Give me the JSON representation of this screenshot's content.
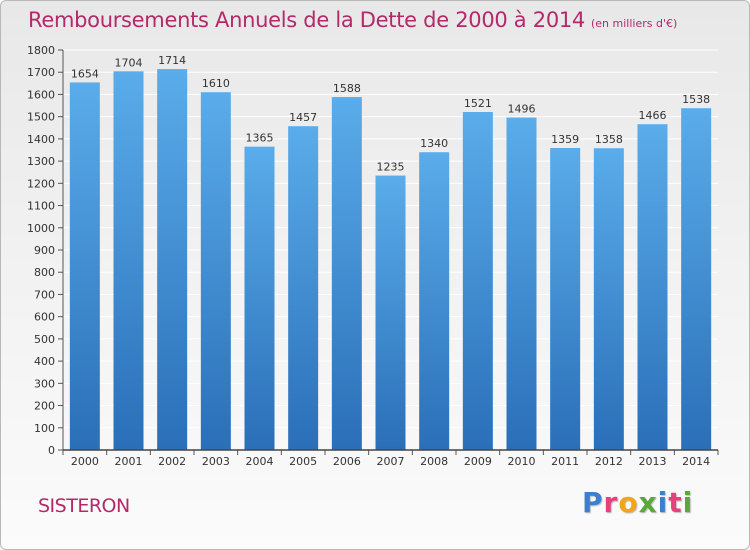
{
  "header": {
    "title": "Remboursements Annuels de la Dette de 2000 à 2014",
    "unit": "(en milliers d'€)"
  },
  "footer": {
    "city": "SISTERON",
    "logo": "Proxiti",
    "logo_colors": [
      "#3a7fd0",
      "#e8407a",
      "#f2a516",
      "#5aa83c",
      "#3a7fd0",
      "#e8407a",
      "#5aa83c"
    ]
  },
  "colors": {
    "bar_top": "#5aacea",
    "bar_bottom": "#2a6fb8",
    "title": "#b5286a"
  },
  "chart_data": {
    "type": "bar",
    "title": "Remboursements Annuels de la Dette de 2000 à 2014",
    "subtitle": "(en milliers d'€)",
    "xlabel": "",
    "ylabel": "",
    "categories": [
      "2000",
      "2001",
      "2002",
      "2003",
      "2004",
      "2005",
      "2006",
      "2007",
      "2008",
      "2009",
      "2010",
      "2011",
      "2012",
      "2013",
      "2014"
    ],
    "values": [
      1654,
      1704,
      1714,
      1610,
      1365,
      1457,
      1588,
      1235,
      1340,
      1521,
      1496,
      1359,
      1358,
      1466,
      1538
    ],
    "ylim": [
      0,
      1800
    ],
    "yticks": [
      0,
      100,
      200,
      300,
      400,
      500,
      600,
      700,
      800,
      900,
      1000,
      1100,
      1200,
      1300,
      1400,
      1500,
      1600,
      1700,
      1800
    ],
    "grid": true
  }
}
